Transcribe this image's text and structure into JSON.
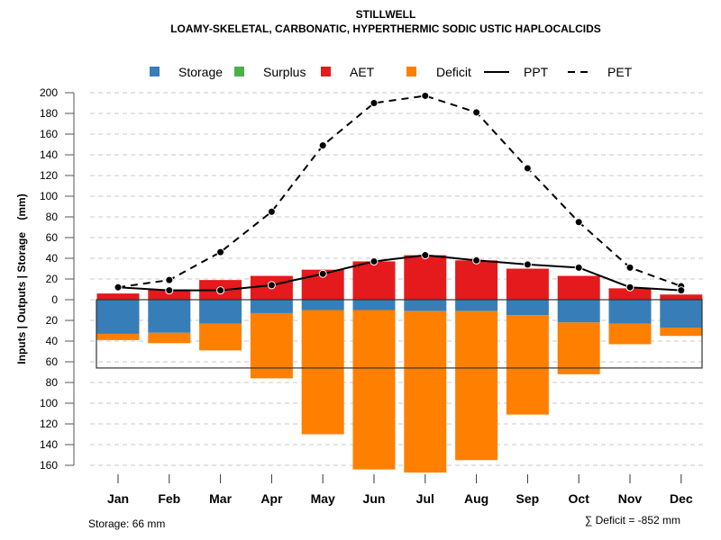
{
  "chart_data": {
    "type": "bar",
    "title": "STILLWELL",
    "subtitle": "LOAMY-SKELETAL, CARBONATIC, HYPERTHERMIC SODIC USTIC HAPLOCALCIDS",
    "xlabel": "",
    "ylabel": "Inputs | Outputs | Storage    (mm)",
    "ylim": [
      -160,
      200
    ],
    "y_ticks": [
      200,
      180,
      160,
      140,
      120,
      100,
      80,
      60,
      40,
      20,
      0,
      20,
      40,
      60,
      80,
      100,
      120,
      140,
      160
    ],
    "y_tick_values": [
      200,
      180,
      160,
      140,
      120,
      100,
      80,
      60,
      40,
      20,
      0,
      -20,
      -40,
      -60,
      -80,
      -100,
      -120,
      -140,
      -160
    ],
    "grid": true,
    "legend_position": "top",
    "categories": [
      "Jan",
      "Feb",
      "Mar",
      "Apr",
      "May",
      "Jun",
      "Jul",
      "Aug",
      "Sep",
      "Oct",
      "Nov",
      "Dec"
    ],
    "legend": [
      {
        "name": "Storage",
        "kind": "box",
        "color": "#377EB8"
      },
      {
        "name": "Surplus",
        "kind": "box",
        "color": "#4DAF4A"
      },
      {
        "name": "AET",
        "kind": "box",
        "color": "#E41A1C"
      },
      {
        "name": "Deficit",
        "kind": "box",
        "color": "#FF7F00"
      },
      {
        "name": "PPT",
        "kind": "solid-line",
        "color": "#000000"
      },
      {
        "name": "PET",
        "kind": "dashed-line",
        "color": "#000000"
      }
    ],
    "series": [
      {
        "name": "AET",
        "color": "#E41A1C",
        "values": [
          6,
          10,
          19,
          23,
          29,
          37,
          43,
          38,
          30,
          23,
          11,
          5
        ]
      },
      {
        "name": "Storage",
        "color": "#377EB8",
        "values": [
          33,
          32,
          23,
          13,
          10,
          10,
          11,
          11,
          15,
          22,
          23,
          27
        ]
      },
      {
        "name": "Surplus",
        "color": "#4DAF4A",
        "values": [
          0,
          0,
          0,
          0,
          0,
          0,
          0,
          0,
          0,
          0,
          0,
          0
        ]
      },
      {
        "name": "Deficit",
        "color": "#FF7F00",
        "values": [
          -6,
          -10,
          -26,
          -63,
          -120,
          -154,
          -156,
          -144,
          -96,
          -50,
          -20,
          -8
        ]
      },
      {
        "name": "PPT",
        "color": "#000000",
        "line": "solid",
        "values": [
          12,
          9,
          9,
          14,
          25,
          37,
          43,
          38,
          34,
          31,
          12,
          9
        ]
      },
      {
        "name": "PET",
        "color": "#000000",
        "line": "dashed",
        "values": [
          12,
          19,
          46,
          85,
          149,
          190,
          197,
          181,
          127,
          75,
          31,
          13
        ]
      }
    ],
    "storage_capacity_mm": 66,
    "annotations": {
      "storage": "Storage: 66 mm",
      "deficit_sum": "∑ Deficit = -852 mm"
    }
  }
}
